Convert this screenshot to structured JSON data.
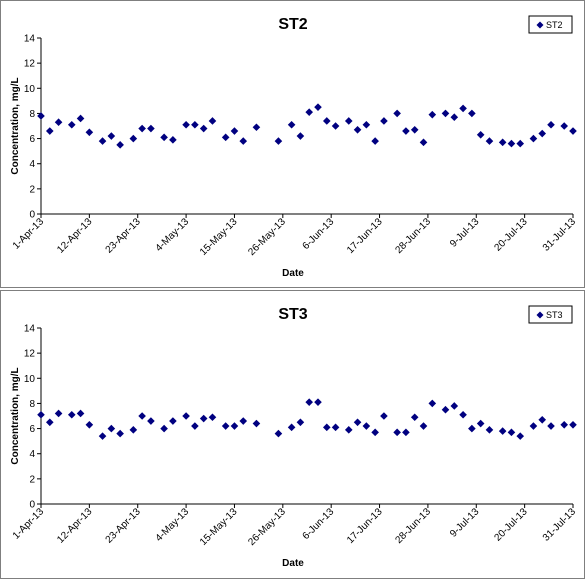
{
  "chart_data": [
    {
      "type": "scatter",
      "title": "ST2",
      "xlabel": "Date",
      "ylabel": "Concentration, mg/L",
      "ylim": [
        0,
        14
      ],
      "yticks": [
        "0",
        "2",
        "4",
        "6",
        "8",
        "10",
        "12",
        "14"
      ],
      "xlim": [
        "1-Apr-13",
        "31-Jul-13"
      ],
      "xticks": [
        "1-Apr-13",
        "12-Apr-13",
        "23-Apr-13",
        "4-May-13",
        "15-May-13",
        "26-May-13",
        "6-Jun-13",
        "17-Jun-13",
        "28-Jun-13",
        "9-Jul-13",
        "20-Jul-13",
        "31-Jul-13"
      ],
      "legend_position": "top-right",
      "marker_color": "#000080",
      "series": [
        {
          "name": "ST2",
          "x": [
            "1-Apr-13",
            "3-Apr-13",
            "5-Apr-13",
            "8-Apr-13",
            "10-Apr-13",
            "12-Apr-13",
            "15-Apr-13",
            "17-Apr-13",
            "19-Apr-13",
            "22-Apr-13",
            "24-Apr-13",
            "26-Apr-13",
            "29-Apr-13",
            "1-May-13",
            "4-May-13",
            "6-May-13",
            "8-May-13",
            "10-May-13",
            "13-May-13",
            "15-May-13",
            "17-May-13",
            "20-May-13",
            "25-May-13",
            "28-May-13",
            "30-May-13",
            "1-Jun-13",
            "3-Jun-13",
            "5-Jun-13",
            "7-Jun-13",
            "10-Jun-13",
            "12-Jun-13",
            "14-Jun-13",
            "16-Jun-13",
            "18-Jun-13",
            "21-Jun-13",
            "23-Jun-13",
            "25-Jun-13",
            "27-Jun-13",
            "29-Jun-13",
            "2-Jul-13",
            "4-Jul-13",
            "6-Jul-13",
            "8-Jul-13",
            "10-Jul-13",
            "12-Jul-13",
            "15-Jul-13",
            "17-Jul-13",
            "19-Jul-13",
            "22-Jul-13",
            "24-Jul-13",
            "26-Jul-13",
            "29-Jul-13",
            "31-Jul-13"
          ],
          "y": [
            7.8,
            6.6,
            7.3,
            7.1,
            7.6,
            6.5,
            5.8,
            6.2,
            5.5,
            6.0,
            6.8,
            6.8,
            6.1,
            5.9,
            7.1,
            7.1,
            6.8,
            7.4,
            6.1,
            6.6,
            5.8,
            6.9,
            5.8,
            7.1,
            6.2,
            8.1,
            8.5,
            7.4,
            7.0,
            7.4,
            6.7,
            7.1,
            5.8,
            7.4,
            8.0,
            6.6,
            6.7,
            5.7,
            7.9,
            8.0,
            7.7,
            8.4,
            8.0,
            6.3,
            5.8,
            5.7,
            5.6,
            5.6,
            6.0,
            6.4,
            7.1,
            7.0,
            6.6
          ]
        }
      ]
    },
    {
      "type": "scatter",
      "title": "ST3",
      "xlabel": "Date",
      "ylabel": "Concentration, mg/L",
      "ylim": [
        0,
        14
      ],
      "yticks": [
        "0",
        "2",
        "4",
        "6",
        "8",
        "10",
        "12",
        "14"
      ],
      "xlim": [
        "1-Apr-13",
        "31-Jul-13"
      ],
      "xticks": [
        "1-Apr-13",
        "12-Apr-13",
        "23-Apr-13",
        "4-May-13",
        "15-May-13",
        "26-May-13",
        "6-Jun-13",
        "17-Jun-13",
        "28-Jun-13",
        "9-Jul-13",
        "20-Jul-13",
        "31-Jul-13"
      ],
      "legend_position": "top-right",
      "marker_color": "#000080",
      "series": [
        {
          "name": "ST3",
          "x": [
            "1-Apr-13",
            "3-Apr-13",
            "5-Apr-13",
            "8-Apr-13",
            "10-Apr-13",
            "12-Apr-13",
            "15-Apr-13",
            "17-Apr-13",
            "19-Apr-13",
            "22-Apr-13",
            "24-Apr-13",
            "26-Apr-13",
            "29-Apr-13",
            "1-May-13",
            "4-May-13",
            "6-May-13",
            "8-May-13",
            "10-May-13",
            "13-May-13",
            "15-May-13",
            "17-May-13",
            "20-May-13",
            "25-May-13",
            "28-May-13",
            "30-May-13",
            "1-Jun-13",
            "3-Jun-13",
            "5-Jun-13",
            "7-Jun-13",
            "10-Jun-13",
            "12-Jun-13",
            "14-Jun-13",
            "16-Jun-13",
            "18-Jun-13",
            "21-Jun-13",
            "23-Jun-13",
            "25-Jun-13",
            "27-Jun-13",
            "29-Jun-13",
            "2-Jul-13",
            "4-Jul-13",
            "6-Jul-13",
            "8-Jul-13",
            "10-Jul-13",
            "12-Jul-13",
            "15-Jul-13",
            "17-Jul-13",
            "19-Jul-13",
            "22-Jul-13",
            "24-Jul-13",
            "26-Jul-13",
            "29-Jul-13",
            "31-Jul-13"
          ],
          "y": [
            7.1,
            6.5,
            7.2,
            7.1,
            7.2,
            6.3,
            5.4,
            6.0,
            5.6,
            5.9,
            7.0,
            6.6,
            6.0,
            6.6,
            7.0,
            6.2,
            6.8,
            6.9,
            6.2,
            6.2,
            6.6,
            6.4,
            5.6,
            6.1,
            6.5,
            8.1,
            8.1,
            6.1,
            6.1,
            5.9,
            6.5,
            6.2,
            5.7,
            7.0,
            5.7,
            5.7,
            6.9,
            6.2,
            8.0,
            7.5,
            7.8,
            7.1,
            6.0,
            6.4,
            5.9,
            5.8,
            5.7,
            5.4,
            6.2,
            6.7,
            6.2,
            6.3,
            6.3
          ]
        }
      ]
    }
  ]
}
